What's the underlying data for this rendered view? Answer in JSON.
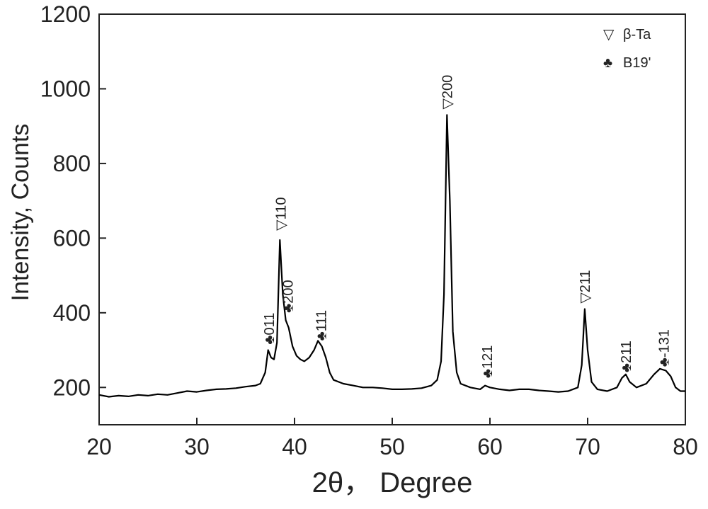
{
  "chart_data": {
    "type": "line",
    "xlabel": "2θ， Degree",
    "ylabel": "Intensity, Counts",
    "xlim": [
      20,
      80
    ],
    "xticks": [
      20,
      30,
      40,
      50,
      60,
      70,
      80
    ],
    "ylim": [
      100,
      1200
    ],
    "yticks": [
      200,
      400,
      600,
      800,
      1000,
      1200
    ],
    "color": "#000000",
    "x": [
      20,
      21,
      22,
      23,
      24,
      25,
      26,
      27,
      28,
      29,
      30,
      31,
      32,
      33,
      34,
      35,
      36,
      36.5,
      37,
      37.3,
      37.6,
      37.9,
      38.2,
      38.5,
      38.8,
      39.1,
      39.4,
      39.8,
      40.2,
      40.6,
      41,
      41.5,
      42,
      42.4,
      42.8,
      43.2,
      43.6,
      44,
      45,
      46,
      47,
      48,
      49,
      50,
      51,
      52,
      53,
      54,
      54.6,
      55,
      55.3,
      55.6,
      55.9,
      56.2,
      56.6,
      57,
      58,
      59,
      59.5,
      60,
      61,
      62,
      63,
      64,
      65,
      66,
      67,
      68,
      69,
      69.4,
      69.7,
      70,
      70.4,
      71,
      72,
      73,
      73.5,
      73.9,
      74.3,
      75,
      76,
      76.8,
      77.4,
      78,
      78.5,
      79,
      79.5,
      80
    ],
    "values": [
      180,
      175,
      178,
      176,
      180,
      178,
      182,
      180,
      185,
      190,
      188,
      192,
      195,
      196,
      198,
      202,
      205,
      210,
      240,
      300,
      280,
      275,
      320,
      595,
      450,
      380,
      360,
      310,
      285,
      275,
      270,
      280,
      300,
      325,
      310,
      280,
      240,
      220,
      210,
      205,
      200,
      200,
      198,
      195,
      195,
      196,
      198,
      205,
      220,
      270,
      450,
      930,
      700,
      350,
      240,
      210,
      200,
      195,
      205,
      200,
      195,
      192,
      195,
      195,
      192,
      190,
      188,
      190,
      200,
      260,
      410,
      300,
      215,
      195,
      190,
      200,
      225,
      235,
      215,
      200,
      210,
      235,
      250,
      245,
      230,
      200,
      190,
      190
    ],
    "markers": [
      {
        "name": "β-Ta",
        "symbol": "▽"
      },
      {
        "name": "B19'",
        "symbol": "♣"
      }
    ],
    "annotations": [
      {
        "label": "011",
        "x": 37.4,
        "y": 315,
        "marker": 1
      },
      {
        "label": "110",
        "x": 38.6,
        "y": 620,
        "marker": 0
      },
      {
        "label": "200",
        "x": 39.3,
        "y": 400,
        "marker": 1
      },
      {
        "label": "111",
        "x": 42.7,
        "y": 325,
        "marker": 1
      },
      {
        "label": "200",
        "x": 55.6,
        "y": 945,
        "marker": 0
      },
      {
        "label": "121",
        "x": 59.7,
        "y": 225,
        "marker": 1
      },
      {
        "label": "211",
        "x": 69.7,
        "y": 425,
        "marker": 0
      },
      {
        "label": "211",
        "x": 73.9,
        "y": 240,
        "marker": 1
      },
      {
        "label": "-131",
        "x": 77.8,
        "y": 255,
        "marker": 1
      }
    ]
  }
}
